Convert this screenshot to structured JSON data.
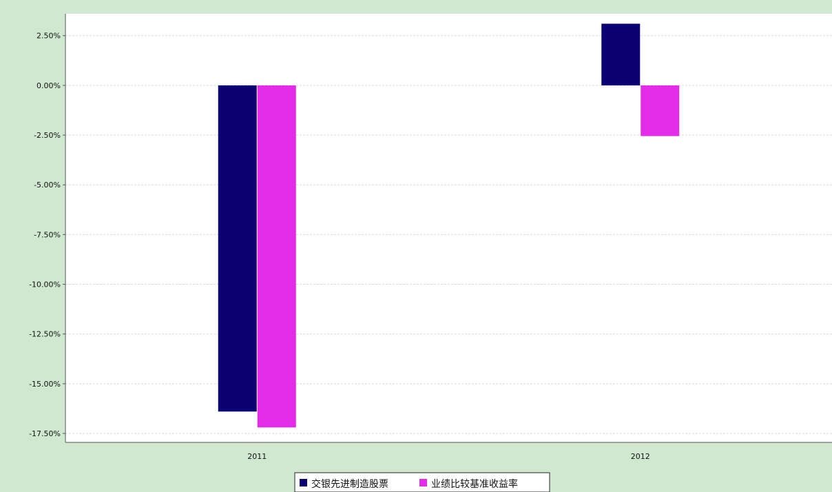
{
  "chart_data": {
    "type": "bar",
    "categories": [
      "2011",
      "2012"
    ],
    "series": [
      {
        "name": "交银先进制造股票",
        "color": "#0a0073",
        "values": [
          -16.4,
          3.1
        ]
      },
      {
        "name": "业绩比较基准收益率",
        "color": "#e22ce8",
        "values": [
          -17.2,
          -2.55
        ]
      }
    ],
    "ylim": [
      -17.95,
      3.6
    ],
    "yticks": [
      2.5,
      0,
      -2.5,
      -5,
      -7.5,
      -10,
      -12.5,
      -15,
      -17.5
    ],
    "ytick_labels": [
      "2.50%",
      "0.00%",
      "-2.50%",
      "-5.00%",
      "-7.50%",
      "-10.00%",
      "-12.50%",
      "-15.00%",
      "-17.50%"
    ],
    "grid": true,
    "legend_position": "bottom-center",
    "colors": {
      "background": "#cfe8cf",
      "plot_background": "#ffffff",
      "gridline": "#d9d9d9",
      "axis": "#555555"
    }
  }
}
